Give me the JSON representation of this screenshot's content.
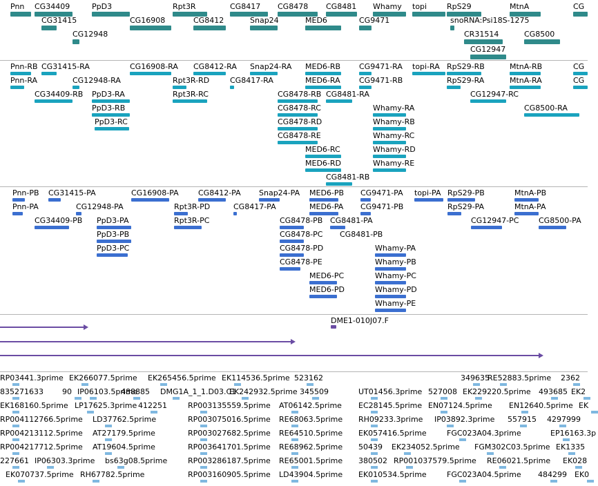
{
  "colors": {
    "gene": "#2f8a8a",
    "transcript": "#1aa3be",
    "protein": "#3b6fd0",
    "alignment": "#6a4ca3",
    "est": "#7fb8e0",
    "divider": "#b4b4b4"
  },
  "tracks": {
    "genes": {
      "labels": [
        "Pnn",
        "CG34409",
        "PpD3",
        "Rpt3R",
        "CG8417",
        "CG8478",
        "CG8481",
        "Whamy",
        "topi",
        "RpS29",
        "MtnA",
        "CG",
        "CG31415",
        "CG16908",
        "CG8412",
        "Snap24",
        "MED6",
        "CG9471",
        "snoRNA:Psi18S-1275",
        "CG12948",
        "CR31514",
        "CG8500",
        "CG12947"
      ]
    },
    "transcripts": {
      "labels": [
        "Pnn-RB",
        "CG31415-RA",
        "CG16908-RA",
        "CG8412-RA",
        "Snap24-RA",
        "MED6-RB",
        "CG9471-RA",
        "topi-RA",
        "RpS29-RB",
        "MtnA-RB",
        "CG",
        "Pnn-RA",
        "CG12948-RA",
        "Rpt3R-RD",
        "CG8417-RA",
        "MED6-RA",
        "CG9471-RB",
        "RpS29-RA",
        "MtnA-RA",
        "CG",
        "CG34409-RB",
        "PpD3-RA",
        "Rpt3R-RC",
        "CG8478-RB",
        "CG8481-RA",
        "CG12947-RC",
        "PpD3-RB",
        "CG8478-RC",
        "Whamy-RA",
        "CG8500-RA",
        "PpD3-RC",
        "CG8478-RD",
        "Whamy-RB",
        "CG8478-RE",
        "Whamy-RC",
        "MED6-RC",
        "Whamy-RD",
        "MED6-RD",
        "Whamy-RE",
        "CG8481-RB"
      ]
    },
    "proteins": {
      "labels": [
        "Pnn-PB",
        "CG31415-PA",
        "CG16908-PA",
        "CG8412-PA",
        "Snap24-PA",
        "MED6-PB",
        "CG9471-PA",
        "topi-PA",
        "RpS29-PB",
        "MtnA-PB",
        "Pnn-PA",
        "CG12948-PA",
        "Rpt3R-PD",
        "CG8417-PA",
        "MED6-PA",
        "CG9471-PB",
        "RpS29-PA",
        "MtnA-PA",
        "CG34409-PB",
        "PpD3-PA",
        "Rpt3R-PC",
        "CG8478-PB",
        "CG8481-PA",
        "CG12947-PC",
        "CG8500-PA",
        "PpD3-PB",
        "CG8478-PC",
        "CG8481-PB",
        "PpD3-PC",
        "CG8478-PD",
        "Whamy-PA",
        "CG8478-PE",
        "Whamy-PB",
        "MED6-PC",
        "Whamy-PC",
        "MED6-PD",
        "Whamy-PD",
        "Whamy-PE"
      ]
    },
    "alignments": {
      "labels": [
        "DME1-010J07.F"
      ]
    },
    "ests": {
      "labels": [
        "RP03441.3prime",
        "EK266077.5prime",
        "EK265456.5prime",
        "EK114536.5prime",
        "523162",
        "349635",
        "RE52883.5prime",
        "2362",
        "835271633",
        "90",
        "IP06103.5prime",
        "488885",
        "DMG1A_1_1.D03.C1",
        "EK242932.5prime",
        "345509",
        "UT01456.3prime",
        "527008",
        "EK229220.5prime",
        "493685",
        "EK2",
        "EK168160.5prime",
        "LP17625.3prime",
        "412251",
        "RP003135559.5prime",
        "AT06142.5prime",
        "EC28145.5prime",
        "EN07124.5prime",
        "EN12640.5prime",
        "EK",
        "RP004112766.5prime",
        "LD37762.5prime",
        "RP003075016.5prime",
        "RE68063.5prime",
        "RH09233.3prime",
        "IP03892.3prime",
        "557915",
        "4297999",
        "RP004213112.5prime",
        "AT27179.5prime",
        "RP003027682.5prime",
        "RE64510.5prime",
        "EK057416.5prime",
        "FGC023A04.3prime",
        "EP16163.3p",
        "RP004217712.5prime",
        "AT19604.5prime",
        "RP003641701.5prime",
        "RE68962.5prime",
        "50439",
        "EK234052.5prime",
        "FGM302C03.5prime",
        "EK1335",
        "227661",
        "IP06303.3prime",
        "bs63g08.5prime",
        "RP003286187.5prime",
        "RE65001.5prime",
        "380502",
        "RP001037579.5prime",
        "RE06021.5prime",
        "EK028",
        "EK070737.5prime",
        "RH67782.5prime",
        "RP003160905.5prime",
        "LD43904.5prime",
        "EK010534.5prime",
        "FGC023A04.5prime",
        "484299",
        "EK0"
      ]
    }
  }
}
